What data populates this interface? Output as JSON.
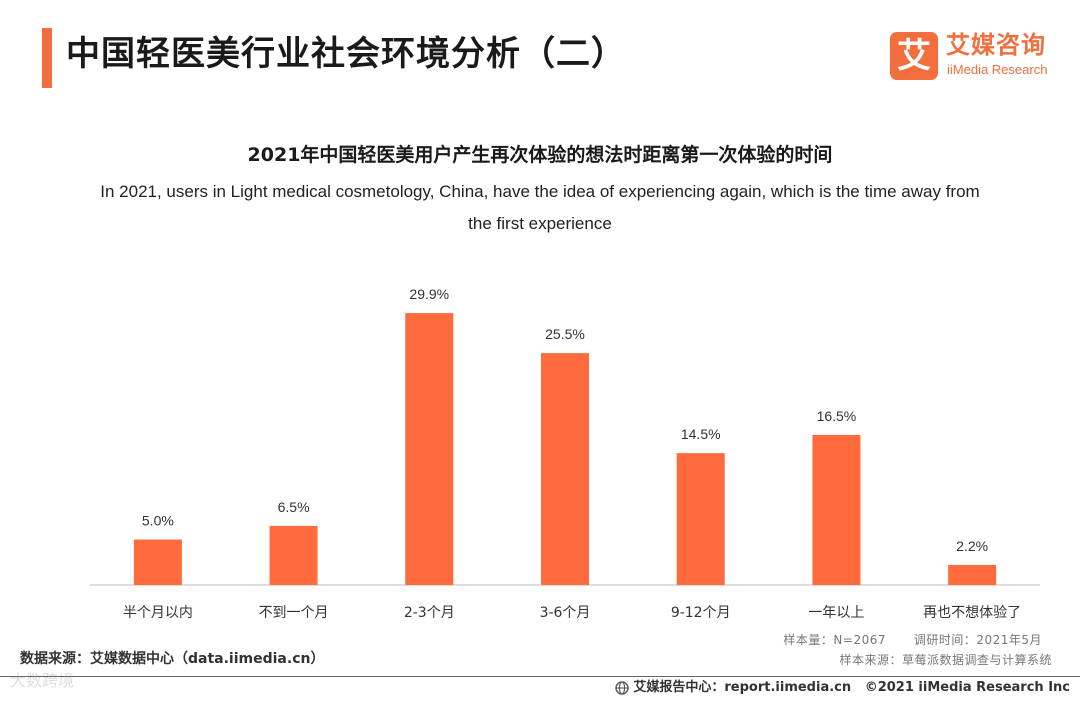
{
  "page": {
    "title": "中国轻医美行业社会环境分析（二）"
  },
  "brand": {
    "name_cn": "艾媒咨询",
    "name_en": "iiMedia Research",
    "mark": "艾"
  },
  "colors": {
    "accent": "#f26e3d",
    "bar": "#ff6b3d",
    "axis": "#bbbbbb"
  },
  "chart_data": {
    "type": "bar",
    "title": "2021年中国轻医美用户产生再次体验的想法时距离第一次体验的时间",
    "subtitle": "In 2021, users in Light medical cosmetology, China, have the idea of experiencing again, which is the time away from the first experience",
    "categories": [
      "半个月以内",
      "不到一个月",
      "2-3个月",
      "3-6个月",
      "9-12个月",
      "一年以上",
      "再也不想体验了"
    ],
    "values": [
      5.0,
      6.5,
      29.9,
      25.5,
      14.5,
      16.5,
      2.2
    ],
    "value_labels": [
      "5.0%",
      "6.5%",
      "29.9%",
      "25.5%",
      "14.5%",
      "16.5%",
      "2.2%"
    ],
    "unit": "%",
    "ylim": [
      0,
      32
    ],
    "xlabel": "",
    "ylabel": "",
    "grid": false,
    "legend": false
  },
  "notes": {
    "sample_size": "样本量：N=2067",
    "survey_time": "调研时间：2021年5月",
    "sample_source": "样本来源：草莓派数据调查与计算系统",
    "data_source": "数据来源：艾媒数据中心（data.iimedia.cn）"
  },
  "watermark": "大数跨境",
  "footer": {
    "center": "艾媒报告中心：report.iimedia.cn",
    "copyright": "©2021  iiMedia Research  Inc"
  }
}
